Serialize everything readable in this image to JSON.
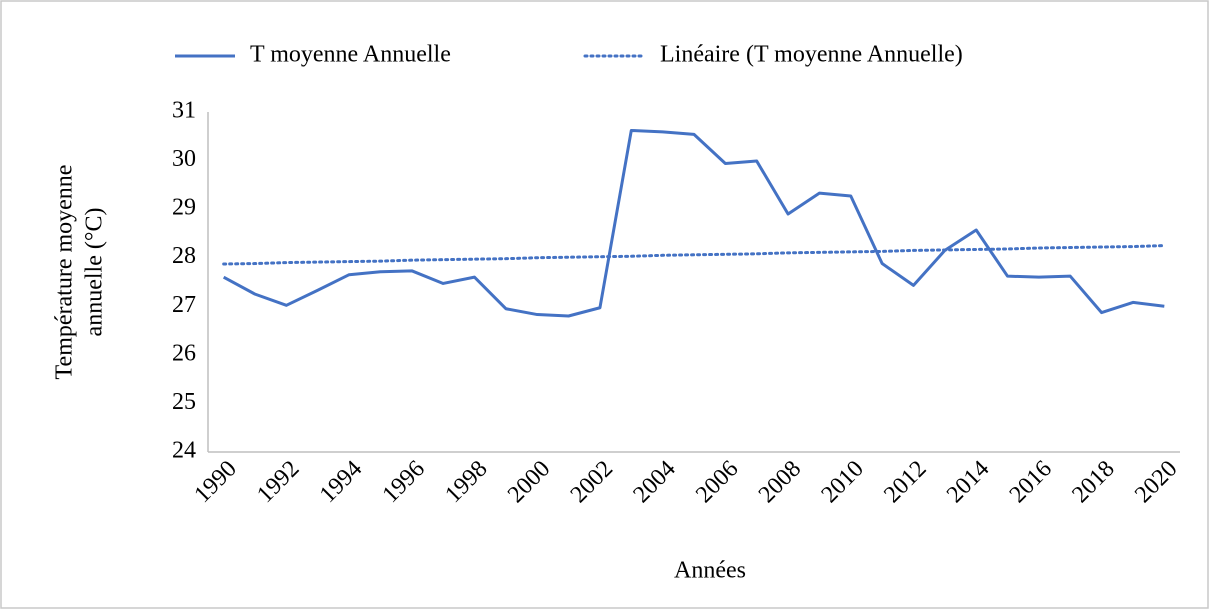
{
  "chart_data": {
    "type": "line",
    "xlabel": "Années",
    "ylabel": [
      "Température moyenne",
      "annuelle (°C)"
    ],
    "categories": [
      "1990",
      null,
      "1992",
      null,
      "1994",
      null,
      "1996",
      null,
      "1998",
      null,
      "2000",
      null,
      "2002",
      null,
      "2004",
      null,
      "2006",
      null,
      "2008",
      null,
      "2010",
      null,
      "2012",
      null,
      "2014",
      null,
      "2016",
      null,
      "2018",
      null,
      "2020"
    ],
    "series": [
      {
        "name": "T moyenne Annuelle",
        "color": "#4472c4",
        "dash": false,
        "values": [
          27.6,
          27.25,
          27.02,
          27.33,
          27.65,
          27.71,
          27.73,
          27.47,
          27.6,
          26.95,
          26.83,
          26.8,
          26.97,
          30.62,
          30.59,
          30.54,
          29.94,
          29.99,
          28.9,
          29.33,
          29.27,
          27.88,
          27.43,
          28.15,
          28.57,
          27.62,
          27.6,
          27.62,
          26.87,
          27.08,
          27.0
        ]
      },
      {
        "name": "Linéaire (T moyenne Annuelle)",
        "color": "#4472c4",
        "dash": true,
        "values": [
          27.87,
          27.88,
          27.9,
          27.91,
          27.92,
          27.93,
          27.95,
          27.96,
          27.97,
          27.98,
          28.0,
          28.01,
          28.02,
          28.03,
          28.05,
          28.06,
          28.07,
          28.08,
          28.1,
          28.11,
          28.12,
          28.13,
          28.15,
          28.16,
          28.17,
          28.18,
          28.2,
          28.21,
          28.22,
          28.23,
          28.25
        ]
      }
    ],
    "ylim": [
      24,
      31
    ],
    "yticks": [
      24,
      25,
      26,
      27,
      28,
      29,
      30,
      31
    ],
    "legend": "top",
    "grid": false
  }
}
